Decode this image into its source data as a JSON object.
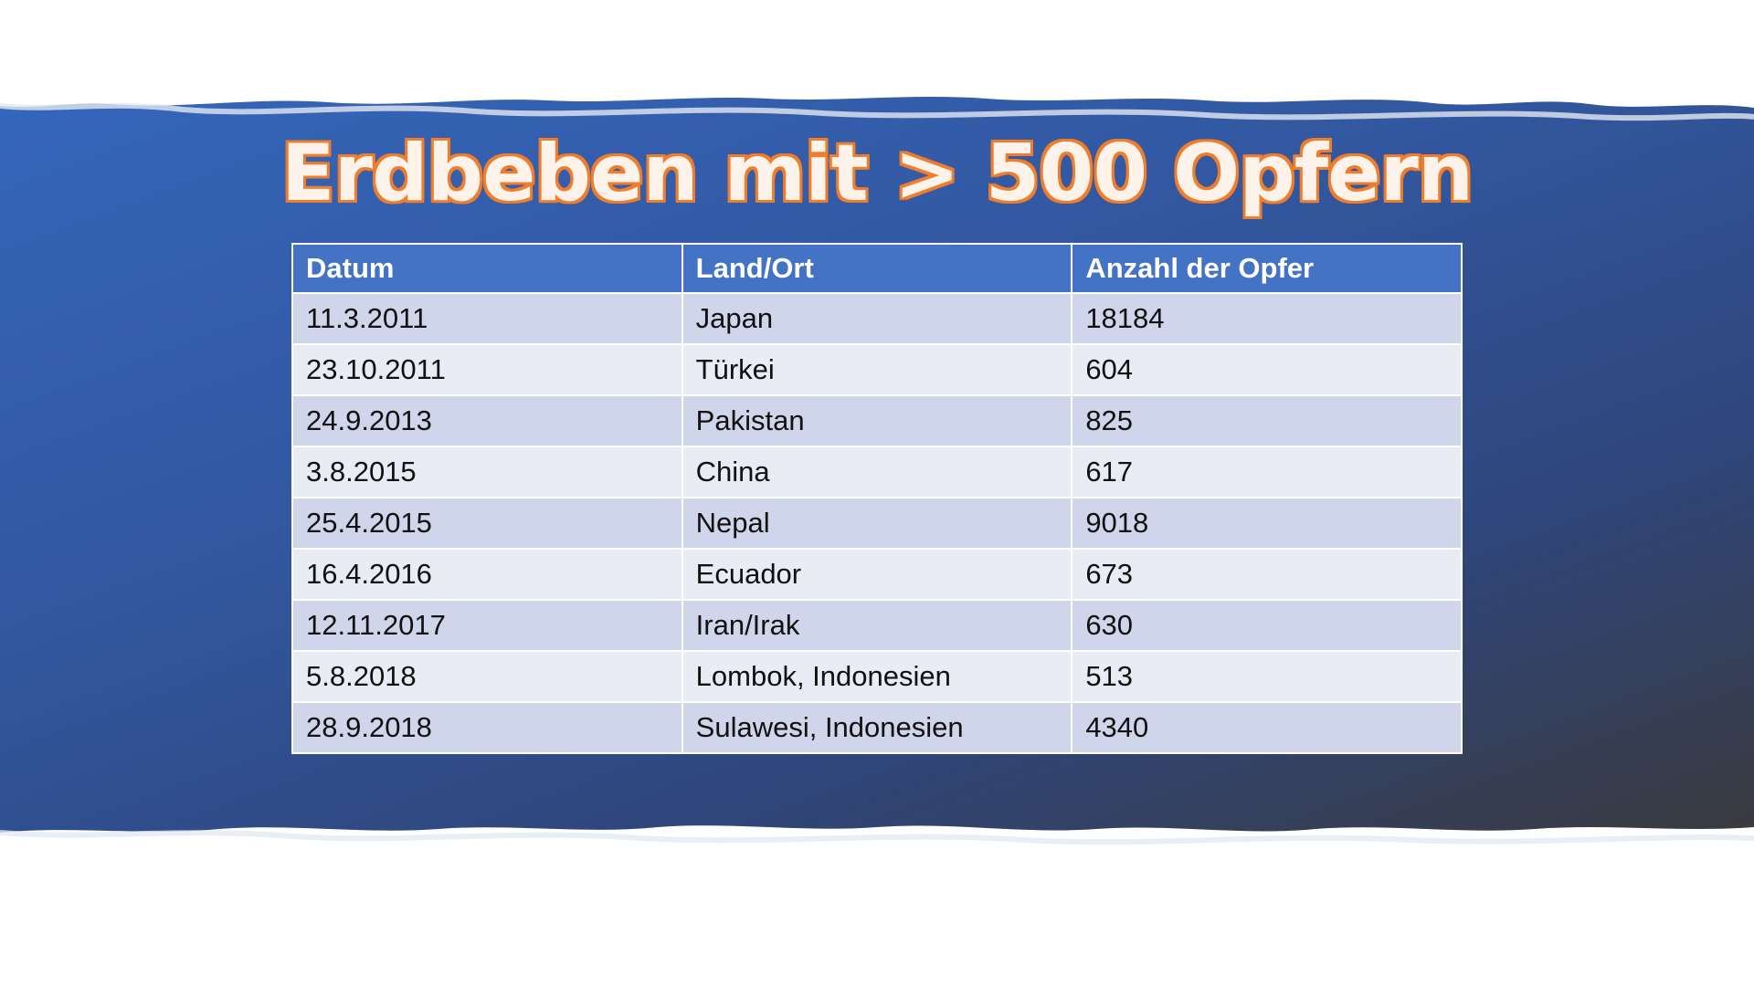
{
  "slide": {
    "title": "Erdbeben mit > 500 Opfern",
    "colors": {
      "band": "#3566bb",
      "header": "#4472c4",
      "row_odd": "#cfd5ea",
      "row_even": "#e9ebf5",
      "title_outline": "#ef7d2b"
    }
  },
  "table": {
    "headers": [
      "Datum",
      "Land/Ort",
      "Anzahl der Opfer"
    ],
    "rows": [
      [
        "11.3.2011",
        "Japan",
        "18184"
      ],
      [
        "23.10.2011",
        "Türkei",
        "604"
      ],
      [
        "24.9.2013",
        "Pakistan",
        "825"
      ],
      [
        "3.8.2015",
        "China",
        "617"
      ],
      [
        "25.4.2015",
        "Nepal",
        "9018"
      ],
      [
        "16.4.2016",
        "Ecuador",
        "673"
      ],
      [
        "12.11.2017",
        "Iran/Irak",
        "630"
      ],
      [
        "5.8.2018",
        "Lombok, Indonesien",
        "513"
      ],
      [
        "28.9.2018",
        "Sulawesi, Indonesien",
        "4340"
      ]
    ]
  }
}
